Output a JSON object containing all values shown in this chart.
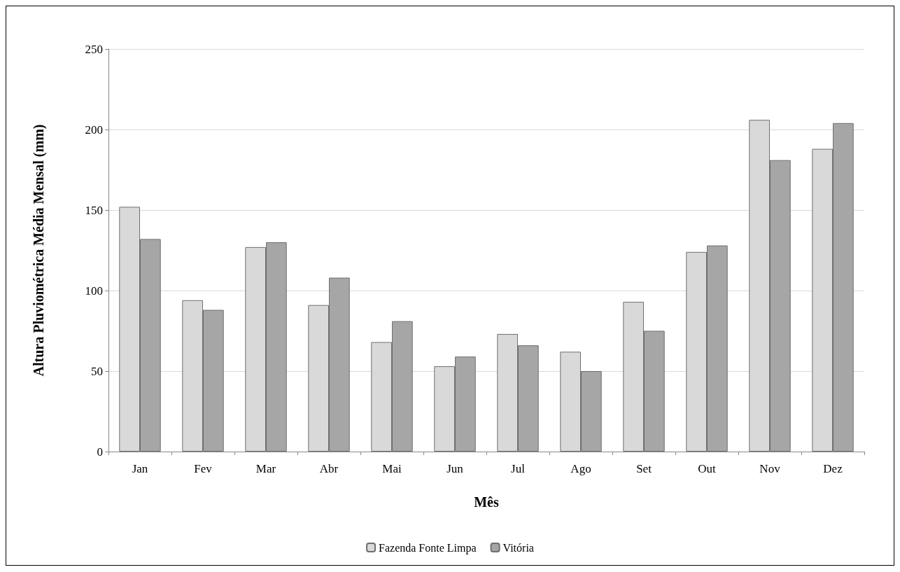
{
  "chart_data": {
    "type": "bar",
    "xlabel": "Mês",
    "ylabel": "Altura Pluviométrica Média Mensal (mm)",
    "categories": [
      "Jan",
      "Fev",
      "Mar",
      "Abr",
      "Mai",
      "Jun",
      "Jul",
      "Ago",
      "Set",
      "Out",
      "Nov",
      "Dez"
    ],
    "series": [
      {
        "name": "Fazenda Fonte Limpa",
        "color": "#d9d9d9",
        "values": [
          152,
          94,
          127,
          91,
          68,
          53,
          73,
          62,
          93,
          124,
          206,
          188
        ]
      },
      {
        "name": "Vitória",
        "color": "#a6a6a6",
        "values": [
          132,
          88,
          130,
          108,
          81,
          59,
          66,
          50,
          75,
          128,
          181,
          204
        ]
      }
    ],
    "ylim": [
      0,
      250
    ],
    "yticks": [
      0,
      50,
      100,
      150,
      200,
      250
    ],
    "grid": "y",
    "legend": "bottom"
  }
}
